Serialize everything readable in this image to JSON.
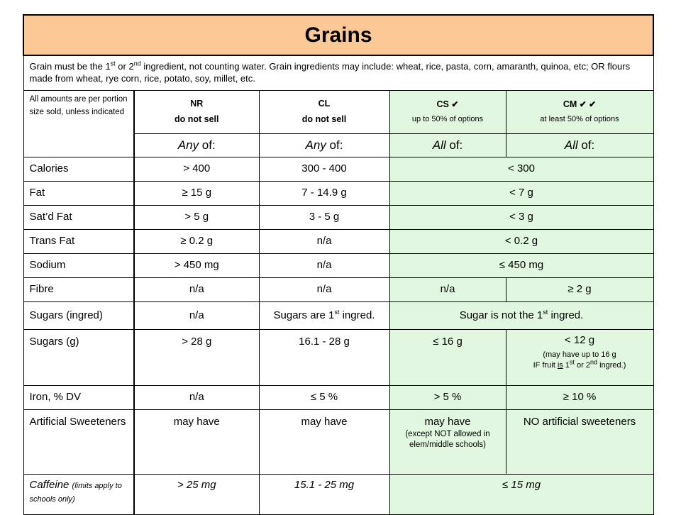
{
  "title": "Grains",
  "intro": "Grain must be the 1st or 2nd ingredient, not counting water. Grain ingredients may include: wheat, rice, pasta, corn, amaranth, quinoa, etc; OR flours made from wheat, rye corn, rice, potato, soy, millet, etc.",
  "intro_parts": {
    "p1": "Grain must be the 1",
    "sup1": "st",
    "p2": " or 2",
    "sup2": "nd",
    "p3": " ingredient, not counting water. Grain ingredients may include: wheat, rice, pasta, corn, amaranth, quinoa, etc; OR flours made from wheat, rye corn, rice, potato, soy, millet, etc."
  },
  "note": "All amounts are per portion size sold, unless indicated",
  "columns": {
    "nr": {
      "code": "NR",
      "sub": "do not sell",
      "qualifier": "Any",
      "of": " of:"
    },
    "cl": {
      "code": "CL",
      "sub": "do not sell",
      "qualifier": "Any",
      "of": " of:"
    },
    "cs": {
      "code": "CS",
      "checks": "✔",
      "sub": "up to 50% of options",
      "qualifier": "All",
      "of": " of:"
    },
    "cm": {
      "code": "CM",
      "checks": "✔ ✔",
      "sub": "at least 50% of options",
      "qualifier": "All",
      "of": " of:"
    }
  },
  "rows": {
    "calories": {
      "label": "Calories",
      "nr": "> 400",
      "cl": "300 - 400",
      "green": "< 300"
    },
    "fat": {
      "label": "Fat",
      "nr": "≥ 15 g",
      "cl": "7 - 14.9 g",
      "green": "< 7 g"
    },
    "satfat": {
      "label": "Sat’d Fat",
      "nr": "> 5 g",
      "cl": "3 - 5 g",
      "green": "< 3 g"
    },
    "transfat": {
      "label": "Trans Fat",
      "nr": "≥ 0.2 g",
      "cl": "n/a",
      "green": "< 0.2 g"
    },
    "sodium": {
      "label": "Sodium",
      "nr": "> 450 mg",
      "cl": "n/a",
      "green": "≤ 450 mg"
    },
    "fibre": {
      "label": "Fibre",
      "nr": "n/a",
      "cl": "n/a",
      "cs": "n/a",
      "cm": "≥ 2 g"
    },
    "sugars_ingred": {
      "label": "Sugars (ingred)",
      "nr": "n/a",
      "cl_a": "Sugars are 1",
      "cl_sup": "st",
      "cl_b": " ingred.",
      "green_a": "Sugar is not the 1",
      "green_sup": "st",
      "green_b": " ingred."
    },
    "sugars_g": {
      "label": "Sugars (g)",
      "nr": "> 28 g",
      "cl": "16.1 - 28 g",
      "cs": "≤ 16 g",
      "cm": "< 12 g",
      "cm_note1": "(may have up to 16 g",
      "cm_note2_a": "IF fruit ",
      "cm_note2_is": "is",
      "cm_note2_b": " 1",
      "cm_note2_sup1": "st",
      "cm_note2_c": " or 2",
      "cm_note2_sup2": "nd",
      "cm_note2_d": "  ingred.)"
    },
    "iron": {
      "label": "Iron, % DV",
      "nr": "n/a",
      "cl": "≤ 5 %",
      "cs": "> 5 %",
      "cm": "≥ 10 %"
    },
    "sweeteners": {
      "label": "Artificial Sweeteners",
      "nr": "may have",
      "cl": "may have",
      "cs": "may have",
      "cs_note": "(except NOT allowed in elem/middle schools)",
      "cm": "NO artificial sweeteners"
    },
    "caffeine": {
      "label": "Caffeine",
      "label_note": "(limits apply to schools only)",
      "nr": "> 25 mg",
      "cl": "15.1 - 25 mg",
      "green": "≤ 15 mg"
    }
  }
}
